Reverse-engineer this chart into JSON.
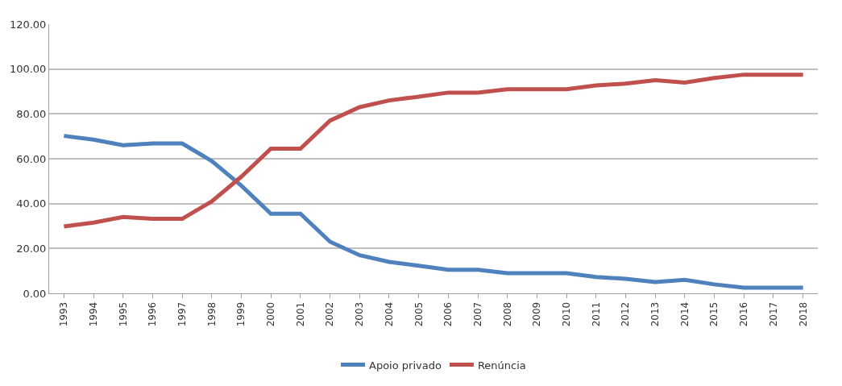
{
  "chart_data": {
    "type": "line",
    "categories": [
      "1993",
      "1994",
      "1995",
      "1996",
      "1997",
      "1998",
      "1999",
      "2000",
      "2001",
      "2002",
      "2003",
      "2004",
      "2005",
      "2006",
      "2007",
      "2008",
      "2009",
      "2010",
      "2011",
      "2012",
      "2013",
      "2014",
      "2015",
      "2016",
      "2017",
      "2018"
    ],
    "series": [
      {
        "name": "Apoio privado",
        "color": "#4f81bd",
        "values": [
          70.2,
          68.5,
          66,
          66.8,
          66.8,
          59,
          48,
          35.5,
          35.5,
          23,
          17,
          14,
          12.3,
          10.5,
          10.5,
          9,
          9,
          9,
          7.3,
          6.5,
          5,
          6,
          4,
          2.5,
          2.5,
          2.5
        ]
      },
      {
        "name": "Renúncia",
        "color": "#c0504d",
        "values": [
          29.8,
          31.5,
          34,
          33.2,
          33.2,
          41,
          52,
          64.5,
          64.5,
          77,
          83,
          86,
          87.7,
          89.5,
          89.5,
          91,
          91,
          91,
          92.7,
          93.5,
          95,
          94,
          96,
          97.5,
          97.5,
          97.5
        ]
      }
    ],
    "ylim": [
      0,
      120
    ],
    "yticks": [
      {
        "value": 0,
        "label": "0.00"
      },
      {
        "value": 20,
        "label": "20.00"
      },
      {
        "value": 40,
        "label": "40.00"
      },
      {
        "value": 60,
        "label": "60.00"
      },
      {
        "value": 80,
        "label": "80.00"
      },
      {
        "value": 100,
        "label": "100.00"
      },
      {
        "value": 120,
        "label": "120.00"
      }
    ],
    "grid": "y",
    "legend": "bottom",
    "marker": "none",
    "line_style": "solid"
  }
}
